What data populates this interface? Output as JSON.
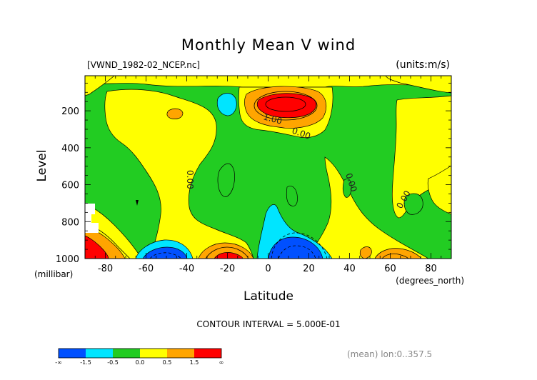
{
  "chart_data": {
    "type": "heatmap",
    "title": "Monthly Mean V wind",
    "file_label": "[VWND_1982-02_NCEP.nc]",
    "units_label": "(units:m/s)",
    "xlabel": "Latitude",
    "x_unit": "(degrees_north)",
    "ylabel": "Level",
    "y_unit": "(millibar)",
    "x_ticks": [
      "-80",
      "-60",
      "-40",
      "-20",
      "0",
      "20",
      "40",
      "60",
      "80"
    ],
    "x_tick_values": [
      -80,
      -60,
      -40,
      -20,
      0,
      20,
      40,
      60,
      80
    ],
    "y_ticks": [
      "200",
      "400",
      "600",
      "800",
      "1000"
    ],
    "y_tick_values": [
      200,
      400,
      600,
      800,
      1000
    ],
    "xlim": [
      -90,
      90
    ],
    "ylim": [
      1000,
      10
    ],
    "contour_interval_text": "CONTOUR INTERVAL = 5.000E-01",
    "mean_note": "(mean) lon:0..357.5",
    "contour_labels": [
      "1.00",
      "0.00",
      "0.00",
      "0.00",
      "0.00"
    ],
    "colorbar": {
      "labels": [
        "-∞",
        "-1.5",
        "-0.5",
        "0.0",
        "0.5",
        "1.5",
        "∞"
      ],
      "colors": [
        "#0050ff",
        "#00e5ff",
        "#22cc22",
        "#ffff00",
        "#ffa500",
        "#ff0000"
      ]
    },
    "level_colors": {
      "strong_negative": "#0050ff",
      "negative": "#00e5ff",
      "near_zero": "#22cc22",
      "weak_positive": "#ffff00",
      "positive": "#ffa500",
      "strong_positive": "#ff0000",
      "contour_line": "#000000"
    },
    "features": [
      {
        "kind": "max",
        "lat": 8,
        "level": 170,
        "value": 1.8
      },
      {
        "kind": "min",
        "lat": -52,
        "level": 960,
        "value": -1.6
      },
      {
        "kind": "min",
        "lat": 10,
        "level": 960,
        "value": -1.7
      },
      {
        "kind": "max",
        "lat": -22,
        "level": 980,
        "value": 1.6
      },
      {
        "kind": "max",
        "lat": -85,
        "level": 930,
        "value": 1.6
      },
      {
        "kind": "min",
        "lat": -27,
        "level": 160,
        "value": -0.6
      }
    ]
  }
}
